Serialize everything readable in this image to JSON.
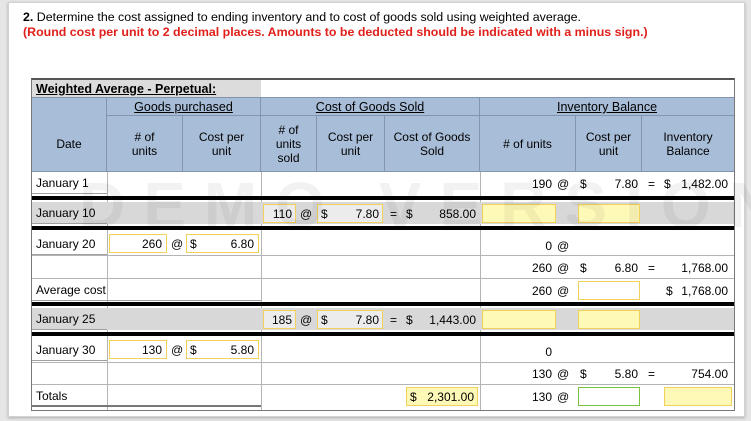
{
  "question": {
    "number": "2.",
    "text": "Determine the cost assigned to ending inventory and to cost of goods sold using weighted average.",
    "instruction": "(Round cost per unit to 2 decimal places. Amounts to be deducted should be indicated with a minus sign.)"
  },
  "table": {
    "title": "Weighted Average - Perpetual:",
    "groups": {
      "purchased": "Goods purchased",
      "cogs": "Cost of Goods Sold",
      "balance": "Inventory Balance"
    },
    "headers": {
      "date": "Date",
      "p_units": "# of units",
      "p_cost": "Cost per unit",
      "s_units": "# of units sold",
      "s_cost": "Cost per unit",
      "s_total": "Cost of Goods Sold",
      "b_units": "# of units",
      "b_cost": "Cost per unit",
      "b_total": "Inventory Balance"
    },
    "symbols": {
      "at": "@",
      "dollar": "$",
      "eq": "="
    },
    "rows": {
      "jan1": {
        "label": "January 1",
        "b_units": "190",
        "b_cost": "7.80",
        "b_total": "1,482.00"
      },
      "jan10": {
        "label": "January 10",
        "s_units": "110",
        "s_cost": "7.80",
        "s_total": "858.00"
      },
      "jan20": {
        "label": "January 20",
        "p_units": "260",
        "p_cost": "6.80",
        "b_units": "0",
        "b2_units": "260",
        "b2_cost": "6.80",
        "b2_total": "1,768.00"
      },
      "avg": {
        "label": "Average cost",
        "b_units": "260",
        "b_total": "1,768.00"
      },
      "jan25": {
        "label": "January 25",
        "s_units": "185",
        "s_cost": "7.80",
        "s_total": "1,443.00"
      },
      "jan30": {
        "label": "January 30",
        "p_units": "130",
        "p_cost": "5.80",
        "b_units": "0",
        "b2_units": "130",
        "b2_cost": "5.80",
        "b2_total": "754.00"
      },
      "totals": {
        "label": "Totals",
        "s_total": "2,301.00",
        "b_units": "130"
      }
    }
  },
  "watermark": "DEMO VERSION"
}
